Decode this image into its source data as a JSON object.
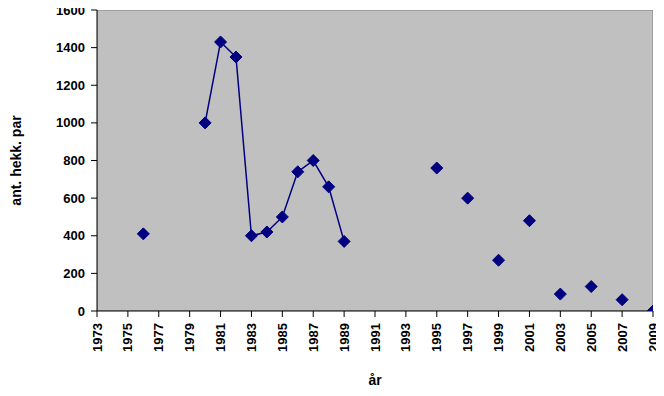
{
  "chart_data": {
    "type": "line",
    "x_label": "år",
    "y_label": "ant. hekk. par",
    "x": [
      1976,
      1978,
      1980,
      1981,
      1982,
      1983,
      1984,
      1985,
      1986,
      1987,
      1988,
      1989,
      1990,
      1995,
      1996,
      1997,
      1998,
      1999,
      2000,
      2001,
      2002,
      2003,
      2004,
      2005,
      2006,
      2007,
      2008,
      2009
    ],
    "values": [
      410,
      null,
      1000,
      1430,
      1350,
      400,
      420,
      500,
      740,
      800,
      660,
      370,
      null,
      760,
      null,
      600,
      null,
      270,
      null,
      480,
      null,
      90,
      null,
      130,
      null,
      60,
      null,
      0
    ],
    "color": "#000080",
    "marker": "diamond",
    "xlim": [
      1973,
      2009
    ],
    "xticks": [
      1973,
      1975,
      1977,
      1979,
      1981,
      1983,
      1985,
      1987,
      1989,
      1991,
      1993,
      1995,
      1997,
      1999,
      2001,
      2003,
      2005,
      2007,
      2009
    ],
    "ylim": [
      0,
      1600
    ],
    "yticks": [
      0,
      200,
      400,
      600,
      800,
      1000,
      1200,
      1400,
      1600
    ],
    "grid": false
  }
}
